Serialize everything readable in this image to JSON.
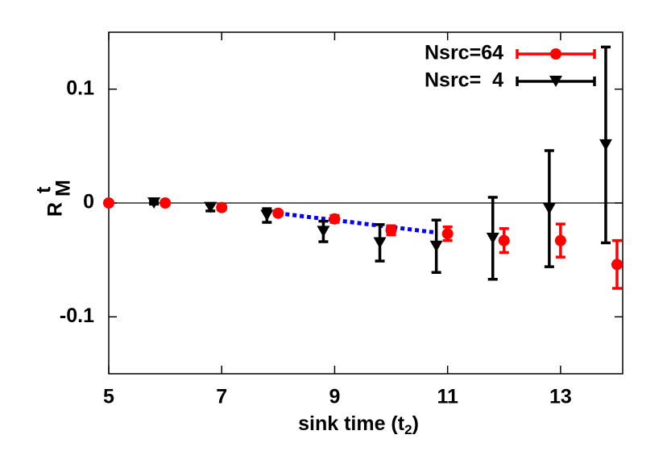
{
  "chart_data": {
    "type": "scatter",
    "xlabel": [
      "sink time (t",
      "2",
      ")"
    ],
    "ylabel": [
      "R",
      "t",
      "M"
    ],
    "xlim": [
      5,
      14.1
    ],
    "ylim": [
      -0.15,
      0.15
    ],
    "xticks": [
      5,
      7,
      9,
      11,
      13
    ],
    "yticks": [
      -0.1,
      0,
      0.1
    ],
    "zeroaxis": true,
    "legend": "top-right",
    "series": [
      {
        "name": "Nsrc=64",
        "color": "#ff0000",
        "marker": "circle",
        "x": [
          5,
          6,
          7,
          8,
          9,
          10,
          11,
          12,
          13,
          14
        ],
        "values": [
          0,
          0,
          -0.004,
          -0.009,
          -0.014,
          -0.024,
          -0.027,
          -0.033,
          -0.033,
          -0.054
        ],
        "errors": [
          0,
          0,
          0.002,
          0.002,
          0.003,
          0.004,
          0.006,
          0.0105,
          0.0145,
          0.021
        ]
      },
      {
        "name": "Nsrc=  4",
        "color": "#000000",
        "marker": "triangle-down",
        "x": [
          5.8,
          6.8,
          7.8,
          8.8,
          9.8,
          10.8,
          11.8,
          12.8,
          13.8
        ],
        "values": [
          0,
          -0.004,
          -0.011,
          -0.025,
          -0.035,
          -0.038,
          -0.031,
          -0.005,
          0.051
        ],
        "errors": [
          0.001,
          0.003,
          0.006,
          0.009,
          0.016,
          0.023,
          0.036,
          0.051,
          0.086
        ]
      }
    ],
    "fit_line": {
      "color": "#0000ff",
      "x": [
        8,
        10.8
      ],
      "values": [
        -0.009,
        -0.026
      ]
    }
  }
}
